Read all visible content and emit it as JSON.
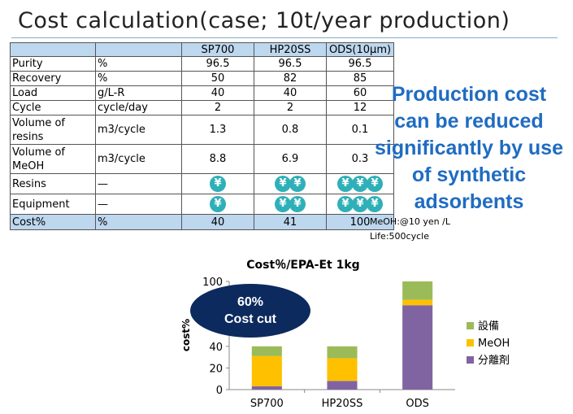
{
  "title": "Cost calculation(case; 10t/year production)",
  "table": {
    "headers": [
      "",
      "",
      "SP700",
      "HP20SS",
      "ODS(10μm)"
    ],
    "rows": [
      {
        "label": "Purity",
        "unit": "%",
        "values": [
          "96.5",
          "96.5",
          "96.5"
        ]
      },
      {
        "label": "Recovery",
        "unit": "%",
        "values": [
          "50",
          "82",
          "85"
        ]
      },
      {
        "label": "Load",
        "unit": "g/L-R",
        "values": [
          "40",
          "40",
          "60"
        ]
      },
      {
        "label": "Cycle",
        "unit": "cycle/day",
        "values": [
          "2",
          "2",
          "12"
        ]
      },
      {
        "label": "Volume of resins",
        "unit": "m3/cycle",
        "values": [
          "1.3",
          "0.8",
          "0.1"
        ]
      },
      {
        "label": "Volume of MeOH",
        "unit": "m3/cycle",
        "values": [
          "8.8",
          "6.9",
          "0.3"
        ]
      },
      {
        "label": "Resins",
        "unit": "—",
        "yen_counts": [
          1,
          2,
          3
        ]
      },
      {
        "label": "Equipment",
        "unit": "—",
        "yen_counts": [
          1,
          2,
          3
        ]
      },
      {
        "label": "Cost%",
        "unit": "%",
        "values": [
          "40",
          "41",
          "100"
        ]
      }
    ],
    "yen_symbol": "¥",
    "yen_color": "#2fb0b8",
    "header_color": "#bdd7ee"
  },
  "message": "Production cost can be reduced significantly by use of synthetic adsorbents",
  "notes": {
    "meoh": "MeOH:@10 yen /L",
    "life": "Life:500cycle"
  },
  "badge": {
    "line1": "60%",
    "line2": "Cost cut",
    "color": "#0d2a5e"
  },
  "chart_data": {
    "type": "bar",
    "stacked": true,
    "title": "Cost％/EPA-Et 1kg",
    "ylabel": "cost%",
    "xlabel": "",
    "categories": [
      "SP700",
      "HP20SS",
      "ODS"
    ],
    "ylim": [
      0,
      100
    ],
    "yticks": [
      0,
      20,
      40,
      60,
      80,
      100
    ],
    "grid": false,
    "legend_position": "right",
    "series": [
      {
        "name": "分離剤",
        "values": [
          3,
          8,
          78
        ],
        "color": "#8064a2"
      },
      {
        "name": "MeOH",
        "values": [
          28,
          21,
          5
        ],
        "color": "#ffc000"
      },
      {
        "name": "設備",
        "values": [
          9,
          11,
          17
        ],
        "color": "#9bbb59"
      }
    ]
  }
}
